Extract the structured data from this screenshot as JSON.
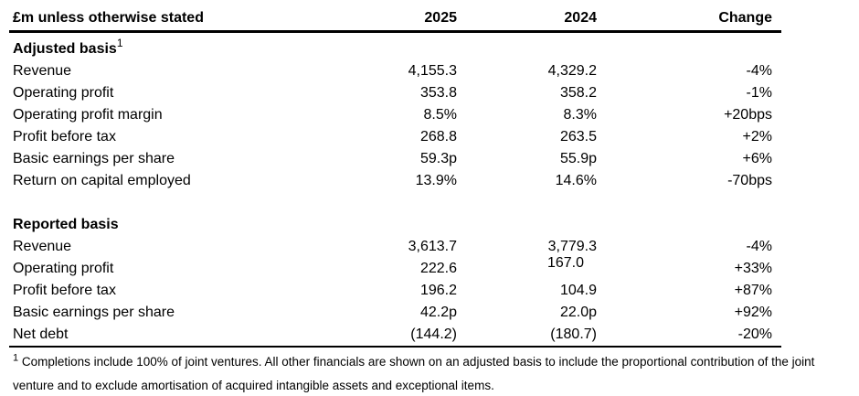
{
  "table": {
    "header": {
      "unit_label": "£m unless otherwise stated",
      "col_2025": "2025",
      "col_2024": "2024",
      "col_change": "Change"
    },
    "sections": [
      {
        "id": "adjusted",
        "title": "Adjusted basis",
        "superscript": "1",
        "rows": [
          {
            "label": "Revenue",
            "v2025": "4,155.3",
            "v2024": "4,329.2",
            "change": "-4%"
          },
          {
            "label": "Operating profit",
            "v2025": "353.8",
            "v2024": "358.2",
            "change": "-1%"
          },
          {
            "label": "Operating profit margin",
            "v2025": "8.5%",
            "v2024": "8.3%",
            "change": "+20bps"
          },
          {
            "label": "Profit before tax",
            "v2025": "268.8",
            "v2024": "263.5",
            "change": "+2%"
          },
          {
            "label": "Basic earnings per share",
            "v2025": "59.3p",
            "v2024": "55.9p",
            "change": "+6%"
          },
          {
            "label": "Return on capital employed",
            "v2025": "13.9%",
            "v2024": "14.6%",
            "change": "-70bps"
          }
        ]
      },
      {
        "id": "reported",
        "title": "Reported basis",
        "superscript": "",
        "rows": [
          {
            "label": "Revenue",
            "v2025": "3,613.7",
            "v2024": "3,779.3",
            "change": "-4%"
          },
          {
            "label": "Operating profit",
            "v2025": "222.6",
            "v2024": "167.0",
            "change": "+33%",
            "raised_2024": true
          },
          {
            "label": "Profit before tax",
            "v2025": "196.2",
            "v2024": "104.9",
            "change": "+87%"
          },
          {
            "label": "Basic earnings per share",
            "v2025": "42.2p",
            "v2024": "22.0p",
            "change": "+92%"
          },
          {
            "label": "Net debt",
            "v2025": "(144.2)",
            "v2024": "(180.7)",
            "change": "-20%"
          }
        ]
      }
    ]
  },
  "footnote": {
    "marker": "1",
    "line1": "Completions include 100% of joint ventures.  All other financials are shown on an adjusted basis to include the proportional contribution of the joint",
    "line2": "venture and to exclude amortisation of acquired intangible assets and exceptional items."
  },
  "colors": {
    "text": "#000000",
    "background": "#ffffff",
    "rule": "#000000"
  }
}
